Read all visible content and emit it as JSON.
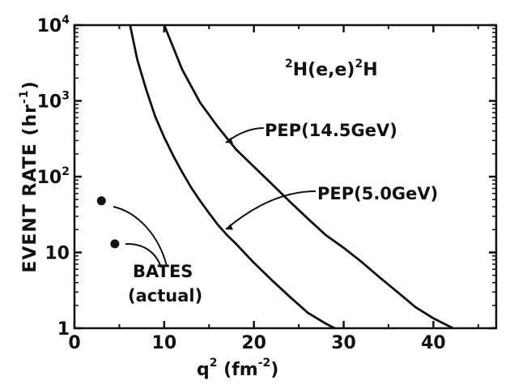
{
  "chart_data": {
    "type": "line",
    "title": "",
    "reaction": {
      "pre": "2",
      "a": "H(e,e)",
      "post": "2",
      "b": "H"
    },
    "xlabel": {
      "base": "q",
      "sup1": "2",
      "mid": " (fm",
      "sup2": "-2",
      "end": ")"
    },
    "ylabel": {
      "text": "EVENT RATE",
      "open": " (hr",
      "sup": "-1",
      "close": ")"
    },
    "xlim": [
      0,
      47
    ],
    "ylim": [
      1,
      10000
    ],
    "yscale": "log",
    "x_ticks": [
      0,
      10,
      20,
      30,
      40
    ],
    "x_tick_labels": [
      "0",
      "10",
      "20",
      "30",
      "40"
    ],
    "y_ticks": [
      1,
      10,
      100,
      1000,
      10000
    ],
    "y_tick_labels": [
      {
        "base": "1",
        "sup": ""
      },
      {
        "base": "10",
        "sup": ""
      },
      {
        "base": "10",
        "sup": "2"
      },
      {
        "base": "10",
        "sup": "3"
      },
      {
        "base": "10",
        "sup": "4"
      }
    ],
    "grid": false,
    "series": [
      {
        "name": "PEP (14.5 GeV)",
        "x": [
          10.0,
          12.0,
          14.0,
          16.0,
          18.0,
          20.0,
          22.0,
          24.0,
          26.0,
          28.0,
          30.0,
          32.0,
          34.0,
          36.0,
          38.0,
          40.0,
          41.5,
          42.2
        ],
        "y": [
          10000,
          2600,
          950,
          450,
          230,
          135,
          80,
          47,
          28,
          17,
          11.5,
          7.5,
          4.7,
          3.0,
          1.9,
          1.35,
          1.1,
          1.0
        ]
      },
      {
        "name": "PEP (5.0 GeV)",
        "x": [
          6.2,
          7.0,
          8.0,
          9.0,
          10.0,
          11.0,
          12.0,
          13.0,
          14.0,
          15.0,
          16.0,
          17.0,
          18.0,
          20.0,
          22.0,
          24.0,
          26.0,
          28.0,
          29.0
        ],
        "y": [
          10000,
          3500,
          1400,
          620,
          330,
          190,
          115,
          72,
          48,
          33,
          23,
          17,
          13,
          7.3,
          4.3,
          2.6,
          1.6,
          1.15,
          1.0
        ]
      }
    ],
    "bates_points": {
      "name": "BATES (actual)",
      "label_line1": "BATES",
      "label_line2": "(actual)",
      "x": [
        3.0,
        4.5
      ],
      "y": [
        48,
        13
      ]
    },
    "annotations": [
      {
        "label": "PEP(14.5GeV)",
        "target": "PEP (14.5 GeV)"
      },
      {
        "label": "PEP(5.0GeV)",
        "target": "PEP (5.0 GeV)"
      }
    ]
  }
}
